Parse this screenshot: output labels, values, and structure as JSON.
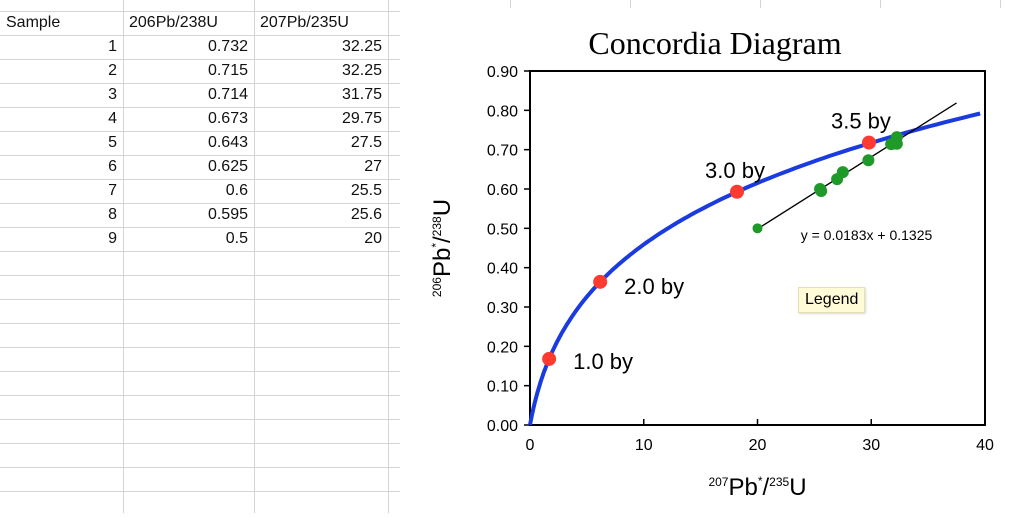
{
  "table": {
    "headers": [
      "Sample",
      "206Pb/238U",
      "207Pb/235U"
    ],
    "rows": [
      [
        "1",
        "0.732",
        "32.25"
      ],
      [
        "2",
        "0.715",
        "32.25"
      ],
      [
        "3",
        "0.714",
        "31.75"
      ],
      [
        "4",
        "0.673",
        "29.75"
      ],
      [
        "5",
        "0.643",
        "27.5"
      ],
      [
        "6",
        "0.625",
        "27"
      ],
      [
        "7",
        "0.6",
        "25.5"
      ],
      [
        "8",
        "0.595",
        "25.6"
      ],
      [
        "9",
        "0.5",
        "20"
      ]
    ]
  },
  "chart_data": {
    "type": "scatter",
    "title": "Concordia Diagram",
    "xlabel": {
      "sup1": "207",
      "main": "Pb",
      "star": "*",
      "slash": "/",
      "sup2": "235",
      "end": "U"
    },
    "ylabel": {
      "sup1": "206",
      "main": "Pb",
      "star": "*",
      "slash": "/",
      "sup2": "238",
      "end": "U"
    },
    "xlim": [
      0,
      40
    ],
    "ylim": [
      0,
      0.9
    ],
    "xticks": [
      "0",
      "10",
      "20",
      "30",
      "40"
    ],
    "yticks": [
      "0.00",
      "0.10",
      "0.20",
      "0.30",
      "0.40",
      "0.50",
      "0.60",
      "0.70",
      "0.80",
      "0.90"
    ],
    "grid": false,
    "concordia_color": "#1a3be0",
    "age_marker_color": "#ff3b30",
    "sample_color": "#1f9a2a",
    "age_markers": [
      {
        "label": "1.0 by",
        "x": 1.68,
        "y": 0.168
      },
      {
        "label": "2.0 by",
        "x": 6.17,
        "y": 0.364
      },
      {
        "label": "3.0 by",
        "x": 18.2,
        "y": 0.593
      },
      {
        "label": "3.5 by",
        "x": 29.8,
        "y": 0.718
      }
    ],
    "samples": {
      "x": [
        32.25,
        32.25,
        31.75,
        29.75,
        27.5,
        27,
        25.5,
        25.6,
        20
      ],
      "y": [
        0.732,
        0.715,
        0.714,
        0.673,
        0.643,
        0.625,
        0.6,
        0.595,
        0.5
      ]
    },
    "trendline": {
      "equation": "y = 0.0183x + 0.1325",
      "slope": 0.0183,
      "intercept": 0.1325,
      "x_range": [
        20,
        37.5
      ]
    },
    "legend_label": "Legend"
  }
}
